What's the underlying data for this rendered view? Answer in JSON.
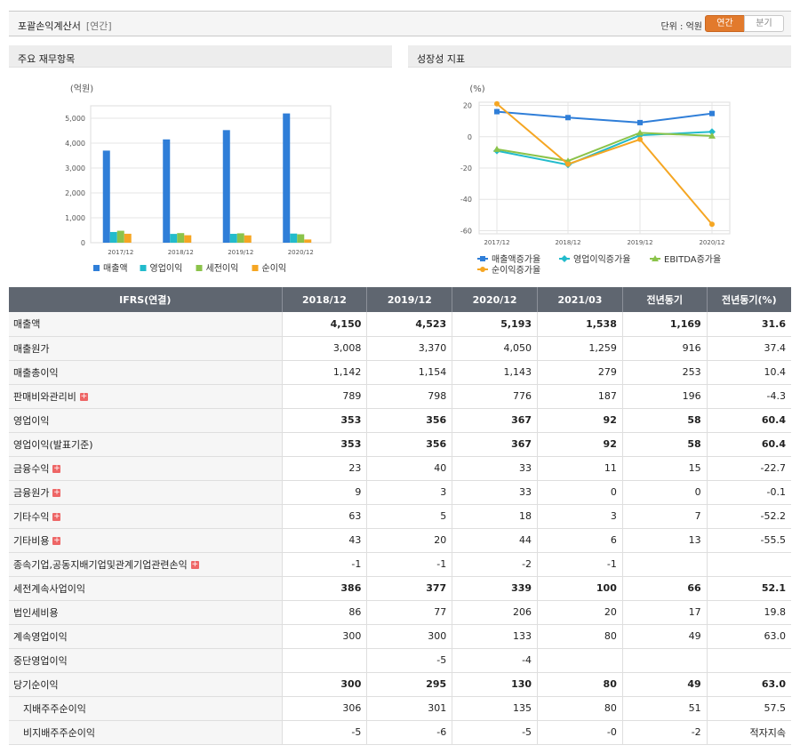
{
  "header": {
    "title": "포괄손익계산서",
    "subtitle": "[연간]",
    "unit_label": "단위 : 억원",
    "toggle_annual": "연간",
    "toggle_quarter": "분기"
  },
  "panels": {
    "left_title": "주요 재무항목",
    "right_title": "성장성 지표"
  },
  "chart_data": [
    {
      "type": "bar",
      "ylabel": "(억원)",
      "ylim": [
        0,
        5500
      ],
      "yticks": [
        "0",
        "1,000",
        "2,000",
        "3,000",
        "4,000",
        "5,000"
      ],
      "categories": [
        "2017/12",
        "2018/12",
        "2019/12",
        "2020/12"
      ],
      "series": [
        {
          "name": "매출액",
          "color": "#2f7ed8",
          "values": [
            3700,
            4150,
            4523,
            5193
          ]
        },
        {
          "name": "영업이익",
          "color": "#22bbcc",
          "values": [
            430,
            353,
            356,
            367
          ]
        },
        {
          "name": "세전이익",
          "color": "#8bc34a",
          "values": [
            480,
            386,
            377,
            339
          ]
        },
        {
          "name": "순이익",
          "color": "#f5a623",
          "values": [
            360,
            300,
            295,
            130
          ]
        }
      ],
      "grid": true,
      "legend": "bottom"
    },
    {
      "type": "line",
      "ylabel": "(%)",
      "ylim": [
        -62,
        22
      ],
      "yticks": [
        "20",
        "0",
        "-20",
        "-40",
        "-60"
      ],
      "categories": [
        "2017/12",
        "2018/12",
        "2019/12",
        "2020/12"
      ],
      "series": [
        {
          "name": "매출액증가율",
          "color": "#2f7ed8",
          "marker": "square",
          "values": [
            16,
            12.2,
            9.0,
            14.8
          ]
        },
        {
          "name": "영업이익증가율",
          "color": "#22bbcc",
          "marker": "diamond",
          "values": [
            -9,
            -17.9,
            0.9,
            3.1
          ]
        },
        {
          "name": "EBITDA증가율",
          "color": "#8bc34a",
          "marker": "triangle",
          "values": [
            -8,
            -15.5,
            2.5,
            0.5
          ]
        },
        {
          "name": "순이익증가율",
          "color": "#f5a623",
          "marker": "circle",
          "values": [
            21,
            -17.5,
            -1.7,
            -55.9
          ]
        }
      ],
      "grid": true,
      "legend": "bottom"
    }
  ],
  "table": {
    "columns": [
      "IFRS(연결)",
      "2018/12",
      "2019/12",
      "2020/12",
      "2021/03",
      "전년동기",
      "전년동기(%)"
    ],
    "rows": [
      {
        "label": "매출액",
        "values": [
          "4,150",
          "4,523",
          "5,193",
          "1,538",
          "1,169",
          "31.6"
        ],
        "bold": true
      },
      {
        "label": "매출원가",
        "values": [
          "3,008",
          "3,370",
          "4,050",
          "1,259",
          "916",
          "37.4"
        ]
      },
      {
        "label": "매출총이익",
        "values": [
          "1,142",
          "1,154",
          "1,143",
          "279",
          "253",
          "10.4"
        ]
      },
      {
        "label": "판매비와관리비",
        "plus": true,
        "values": [
          "789",
          "798",
          "776",
          "187",
          "196",
          "-4.3"
        ]
      },
      {
        "label": "영업이익",
        "values": [
          "353",
          "356",
          "367",
          "92",
          "58",
          "60.4"
        ],
        "bold": true,
        "sep": true
      },
      {
        "label": "영업이익(발표기준)",
        "values": [
          "353",
          "356",
          "367",
          "92",
          "58",
          "60.4"
        ],
        "bold": true
      },
      {
        "label": "금융수익",
        "plus": true,
        "values": [
          "23",
          "40",
          "33",
          "11",
          "15",
          "-22.7"
        ]
      },
      {
        "label": "금융원가",
        "plus": true,
        "values": [
          "9",
          "3",
          "33",
          "0",
          "0",
          "-0.1"
        ]
      },
      {
        "label": "기타수익",
        "plus": true,
        "values": [
          "63",
          "5",
          "18",
          "3",
          "7",
          "-52.2"
        ]
      },
      {
        "label": "기타비용",
        "plus": true,
        "values": [
          "43",
          "20",
          "44",
          "6",
          "13",
          "-55.5"
        ]
      },
      {
        "label": "종속기업,공동지배기업및관계기업관련손익",
        "plus": true,
        "values": [
          "-1",
          "-1",
          "-2",
          "-1",
          "",
          ""
        ]
      },
      {
        "label": "세전계속사업이익",
        "values": [
          "386",
          "377",
          "339",
          "100",
          "66",
          "52.1"
        ],
        "bold": true,
        "sep": true
      },
      {
        "label": "법인세비용",
        "values": [
          "86",
          "77",
          "206",
          "20",
          "17",
          "19.8"
        ]
      },
      {
        "label": "계속영업이익",
        "values": [
          "300",
          "300",
          "133",
          "80",
          "49",
          "63.0"
        ]
      },
      {
        "label": "중단영업이익",
        "values": [
          "",
          "-5",
          "-4",
          "",
          "",
          ""
        ]
      },
      {
        "label": "당기순이익",
        "values": [
          "300",
          "295",
          "130",
          "80",
          "49",
          "63.0"
        ],
        "bold": true,
        "sep": true
      },
      {
        "label": "지배주주순이익",
        "indent": true,
        "values": [
          "306",
          "301",
          "135",
          "80",
          "51",
          "57.5"
        ]
      },
      {
        "label": "비지배주주순이익",
        "indent": true,
        "values": [
          "-5",
          "-6",
          "-5",
          "-0",
          "-2",
          "적자지속"
        ]
      }
    ]
  }
}
